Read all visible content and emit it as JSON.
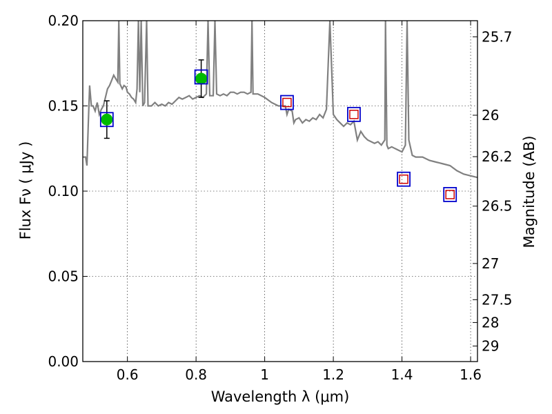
{
  "chart_data": {
    "type": "scatter",
    "xlabel": "Wavelength  λ (μm)",
    "ylabel": "Flux  Fν  ( μJy )",
    "y2label": "Magnitude (AB)",
    "xlim": [
      0.47,
      1.62
    ],
    "ylim": [
      0.0,
      0.2
    ],
    "grid": true,
    "x_ticks": [
      {
        "value": 0.6,
        "label": "0.6"
      },
      {
        "value": 0.8,
        "label": "0.8"
      },
      {
        "value": 1.0,
        "label": "1"
      },
      {
        "value": 1.2,
        "label": "1.2"
      },
      {
        "value": 1.4,
        "label": "1.4"
      },
      {
        "value": 1.6,
        "label": "1.6"
      }
    ],
    "y_ticks": [
      {
        "value": 0.0,
        "label": "0.00"
      },
      {
        "value": 0.05,
        "label": "0.05"
      },
      {
        "value": 0.1,
        "label": "0.10"
      },
      {
        "value": 0.15,
        "label": "0.15"
      },
      {
        "value": 0.2,
        "label": "0.20"
      }
    ],
    "y2_ticks": [
      {
        "mag": 25.7,
        "label": "25.7"
      },
      {
        "mag": 26,
        "label": "26"
      },
      {
        "mag": 26.2,
        "label": "26.2"
      },
      {
        "mag": 26.5,
        "label": "26.5"
      },
      {
        "mag": 27,
        "label": "27"
      },
      {
        "mag": 27.5,
        "label": "27.5"
      },
      {
        "mag": 28,
        "label": "28"
      },
      {
        "mag": 29,
        "label": "29"
      }
    ],
    "series": [
      {
        "type": "line",
        "color": "#808080",
        "points": [
          [
            0.47,
            0.12
          ],
          [
            0.478,
            0.12
          ],
          [
            0.482,
            0.115
          ],
          [
            0.486,
            0.14
          ],
          [
            0.49,
            0.162
          ],
          [
            0.495,
            0.15
          ],
          [
            0.5,
            0.15
          ],
          [
            0.506,
            0.147
          ],
          [
            0.512,
            0.152
          ],
          [
            0.518,
            0.145
          ],
          [
            0.524,
            0.148
          ],
          [
            0.53,
            0.15
          ],
          [
            0.536,
            0.155
          ],
          [
            0.542,
            0.16
          ],
          [
            0.548,
            0.162
          ],
          [
            0.554,
            0.165
          ],
          [
            0.56,
            0.168
          ],
          [
            0.566,
            0.166
          ],
          [
            0.572,
            0.164
          ],
          [
            0.575,
            0.2
          ],
          [
            0.578,
            0.163
          ],
          [
            0.585,
            0.16
          ],
          [
            0.59,
            0.162
          ],
          [
            0.596,
            0.161
          ],
          [
            0.6,
            0.158
          ],
          [
            0.606,
            0.157
          ],
          [
            0.612,
            0.155
          ],
          [
            0.618,
            0.154
          ],
          [
            0.624,
            0.152
          ],
          [
            0.628,
            0.16
          ],
          [
            0.632,
            0.2
          ],
          [
            0.636,
            0.158
          ],
          [
            0.64,
            0.2
          ],
          [
            0.645,
            0.15
          ],
          [
            0.65,
            0.152
          ],
          [
            0.656,
            0.2
          ],
          [
            0.66,
            0.15
          ],
          [
            0.67,
            0.15
          ],
          [
            0.68,
            0.152
          ],
          [
            0.69,
            0.15
          ],
          [
            0.7,
            0.151
          ],
          [
            0.71,
            0.15
          ],
          [
            0.72,
            0.152
          ],
          [
            0.73,
            0.151
          ],
          [
            0.74,
            0.153
          ],
          [
            0.75,
            0.155
          ],
          [
            0.76,
            0.154
          ],
          [
            0.77,
            0.155
          ],
          [
            0.78,
            0.156
          ],
          [
            0.79,
            0.154
          ],
          [
            0.8,
            0.155
          ],
          [
            0.81,
            0.156
          ],
          [
            0.82,
            0.155
          ],
          [
            0.83,
            0.157
          ],
          [
            0.835,
            0.2
          ],
          [
            0.84,
            0.156
          ],
          [
            0.85,
            0.156
          ],
          [
            0.855,
            0.2
          ],
          [
            0.86,
            0.157
          ],
          [
            0.87,
            0.156
          ],
          [
            0.88,
            0.157
          ],
          [
            0.89,
            0.156
          ],
          [
            0.9,
            0.158
          ],
          [
            0.91,
            0.158
          ],
          [
            0.92,
            0.157
          ],
          [
            0.93,
            0.158
          ],
          [
            0.94,
            0.158
          ],
          [
            0.95,
            0.157
          ],
          [
            0.96,
            0.158
          ],
          [
            0.963,
            0.2
          ],
          [
            0.966,
            0.157
          ],
          [
            0.98,
            0.157
          ],
          [
            1.0,
            0.155
          ],
          [
            1.02,
            0.152
          ],
          [
            1.04,
            0.15
          ],
          [
            1.06,
            0.15
          ],
          [
            1.065,
            0.145
          ],
          [
            1.07,
            0.148
          ],
          [
            1.08,
            0.147
          ],
          [
            1.085,
            0.14
          ],
          [
            1.09,
            0.142
          ],
          [
            1.1,
            0.143
          ],
          [
            1.11,
            0.14
          ],
          [
            1.12,
            0.142
          ],
          [
            1.13,
            0.141
          ],
          [
            1.14,
            0.143
          ],
          [
            1.15,
            0.142
          ],
          [
            1.16,
            0.145
          ],
          [
            1.17,
            0.143
          ],
          [
            1.18,
            0.148
          ],
          [
            1.19,
            0.2
          ],
          [
            1.2,
            0.145
          ],
          [
            1.21,
            0.142
          ],
          [
            1.22,
            0.14
          ],
          [
            1.23,
            0.138
          ],
          [
            1.24,
            0.14
          ],
          [
            1.25,
            0.139
          ],
          [
            1.26,
            0.141
          ],
          [
            1.27,
            0.13
          ],
          [
            1.28,
            0.135
          ],
          [
            1.29,
            0.132
          ],
          [
            1.3,
            0.13
          ],
          [
            1.32,
            0.128
          ],
          [
            1.33,
            0.129
          ],
          [
            1.34,
            0.127
          ],
          [
            1.35,
            0.13
          ],
          [
            1.352,
            0.2
          ],
          [
            1.356,
            0.127
          ],
          [
            1.36,
            0.125
          ],
          [
            1.37,
            0.126
          ],
          [
            1.38,
            0.125
          ],
          [
            1.39,
            0.124
          ],
          [
            1.4,
            0.123
          ],
          [
            1.41,
            0.127
          ],
          [
            1.415,
            0.2
          ],
          [
            1.42,
            0.13
          ],
          [
            1.43,
            0.121
          ],
          [
            1.44,
            0.12
          ],
          [
            1.46,
            0.12
          ],
          [
            1.48,
            0.118
          ],
          [
            1.5,
            0.117
          ],
          [
            1.52,
            0.116
          ],
          [
            1.54,
            0.115
          ],
          [
            1.56,
            0.112
          ],
          [
            1.58,
            0.11
          ],
          [
            1.6,
            0.109
          ],
          [
            1.62,
            0.108
          ]
        ]
      },
      {
        "type": "points-green",
        "color": "#00bb00",
        "points": [
          {
            "x": 0.54,
            "y": 0.142,
            "yerr": 0.011
          },
          {
            "x": 0.815,
            "y": 0.166,
            "yerr": 0.011
          }
        ]
      },
      {
        "type": "squares-blue",
        "color": "#0000cc",
        "points": [
          {
            "x": 0.54,
            "y": 0.142
          },
          {
            "x": 0.815,
            "y": 0.167
          },
          {
            "x": 1.065,
            "y": 0.152
          },
          {
            "x": 1.26,
            "y": 0.145
          },
          {
            "x": 1.405,
            "y": 0.107
          },
          {
            "x": 1.54,
            "y": 0.098
          }
        ]
      },
      {
        "type": "squares-red",
        "color": "#cc0000",
        "points": [
          {
            "x": 1.065,
            "y": 0.152
          },
          {
            "x": 1.26,
            "y": 0.145
          },
          {
            "x": 1.405,
            "y": 0.107
          },
          {
            "x": 1.54,
            "y": 0.098
          }
        ]
      }
    ]
  }
}
